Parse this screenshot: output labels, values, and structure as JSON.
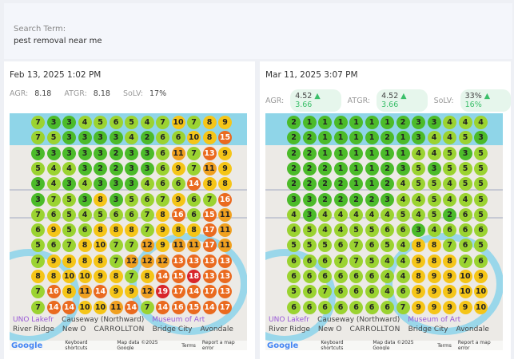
{
  "search": {
    "label": "Search Term:",
    "value": "pest removal near me"
  },
  "colors": {
    "green": "#4cbb2a",
    "lime": "#9bd331",
    "yellow": "#f5c518",
    "amber": "#f0a020",
    "orange": "#ea6a1f",
    "red": "#d9262b"
  },
  "map_labels": {
    "uno": "UNO Lakefr",
    "river_ridge": "River Ridge",
    "bridge_city": "Bridge City",
    "avondale": "Avondale",
    "new_orleans": "New O",
    "museum": "Museum of Art",
    "carrollton": "CARROLLTON",
    "causeway": "Causeway (Northward)"
  },
  "footer": {
    "logo": "Google",
    "shortcuts": "Keyboard shortcuts",
    "mapdata": "Map data ©2025 Google",
    "terms": "Terms",
    "report": "Report a map error"
  },
  "panels": [
    {
      "date": "Feb 13, 2025 1:02 PM",
      "agr_label": "AGR:",
      "agr": "8.18",
      "atgr_label": "ATGR:",
      "atgr": "8.18",
      "solv_label": "SoLV:",
      "solv": "17%",
      "grid": [
        [
          7,
          3,
          3,
          4,
          5,
          6,
          5,
          4,
          7,
          10,
          7,
          8,
          9
        ],
        [
          7,
          5,
          3,
          3,
          3,
          3,
          4,
          2,
          6,
          6,
          10,
          8,
          15
        ],
        [
          3,
          3,
          3,
          3,
          3,
          2,
          3,
          3,
          6,
          11,
          7,
          13,
          9
        ],
        [
          5,
          4,
          4,
          3,
          2,
          2,
          3,
          3,
          6,
          9,
          7,
          11,
          9
        ],
        [
          3,
          4,
          3,
          4,
          3,
          3,
          3,
          4,
          6,
          6,
          14,
          8,
          8
        ],
        [
          3,
          7,
          5,
          3,
          8,
          3,
          5,
          6,
          7,
          9,
          6,
          7,
          16
        ],
        [
          7,
          6,
          5,
          4,
          5,
          6,
          6,
          7,
          8,
          16,
          6,
          15,
          11
        ],
        [
          6,
          9,
          5,
          6,
          8,
          8,
          8,
          7,
          9,
          8,
          8,
          17,
          11
        ],
        [
          5,
          6,
          7,
          8,
          10,
          7,
          7,
          12,
          9,
          11,
          11,
          17,
          11
        ],
        [
          7,
          9,
          8,
          8,
          8,
          7,
          12,
          12,
          12,
          13,
          13,
          13,
          13
        ],
        [
          8,
          8,
          10,
          10,
          9,
          8,
          7,
          8,
          14,
          15,
          18,
          13,
          13
        ],
        [
          7,
          16,
          8,
          11,
          14,
          9,
          9,
          12,
          19,
          17,
          14,
          17,
          13
        ],
        [
          7,
          14,
          14,
          10,
          10,
          11,
          14,
          7,
          14,
          16,
          15,
          14,
          17
        ]
      ]
    },
    {
      "date": "Mar 11, 2025 3:07 PM",
      "agr_label": "AGR:",
      "agr": "4.52",
      "agr_delta": "▲ 3.66",
      "atgr_label": "ATGR:",
      "atgr": "4.52",
      "atgr_delta": "▲ 3.66",
      "solv_label": "SoLV:",
      "solv": "33%",
      "solv_delta": "▲ 16%",
      "grid": [
        [
          2,
          1,
          1,
          1,
          1,
          1,
          1,
          2,
          3,
          3,
          4,
          4,
          4
        ],
        [
          2,
          2,
          1,
          1,
          1,
          1,
          2,
          1,
          3,
          4,
          4,
          5,
          3
        ],
        [
          2,
          2,
          1,
          1,
          1,
          1,
          1,
          1,
          4,
          4,
          5,
          3,
          5
        ],
        [
          2,
          2,
          2,
          1,
          1,
          1,
          2,
          3,
          5,
          3,
          5,
          5,
          5
        ],
        [
          2,
          2,
          2,
          2,
          1,
          1,
          2,
          4,
          5,
          5,
          4,
          5,
          5
        ],
        [
          3,
          3,
          2,
          2,
          2,
          2,
          3,
          4,
          4,
          5,
          4,
          4,
          5
        ],
        [
          4,
          3,
          4,
          4,
          4,
          4,
          4,
          5,
          4,
          5,
          2,
          6,
          5
        ],
        [
          4,
          5,
          4,
          4,
          5,
          5,
          6,
          6,
          3,
          4,
          6,
          6,
          6
        ],
        [
          5,
          5,
          5,
          6,
          7,
          6,
          5,
          4,
          8,
          8,
          7,
          6,
          5
        ],
        [
          6,
          6,
          6,
          7,
          7,
          5,
          4,
          4,
          9,
          8,
          8,
          7,
          6
        ],
        [
          6,
          6,
          6,
          6,
          6,
          6,
          4,
          4,
          8,
          9,
          9,
          10,
          9
        ],
        [
          5,
          6,
          7,
          6,
          6,
          6,
          4,
          6,
          9,
          9,
          9,
          10,
          10
        ],
        [
          6,
          6,
          6,
          6,
          6,
          6,
          6,
          7,
          9,
          9,
          9,
          9,
          10
        ]
      ]
    }
  ]
}
